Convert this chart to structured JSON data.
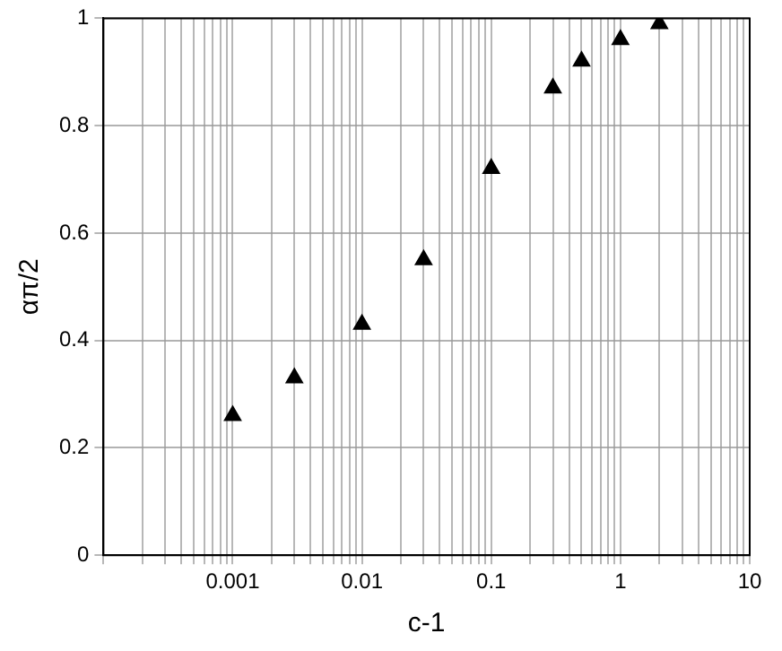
{
  "chart_data": {
    "type": "scatter",
    "xlabel": "c-1",
    "ylabel": "απ/2",
    "log": "x",
    "grid": true,
    "marker": "triangle",
    "legend": false,
    "x": [
      0.001,
      0.003,
      0.01,
      0.03,
      0.1,
      0.3,
      0.5,
      1,
      2
    ],
    "series": [
      {
        "color": "#000000",
        "values": [
          0.26,
          0.33,
          0.43,
          0.55,
          0.72,
          0.87,
          0.92,
          0.96,
          0.99
        ]
      }
    ],
    "xlim": [
      0.0001,
      10
    ],
    "xticks": [
      {
        "value": 0.0001,
        "label": null
      },
      {
        "value": 0.0002,
        "label": null
      },
      {
        "value": 0.0003,
        "label": null
      },
      {
        "value": 0.0004,
        "label": null
      },
      {
        "value": 0.0005,
        "label": null
      },
      {
        "value": 0.0006,
        "label": null
      },
      {
        "value": 0.0007,
        "label": null
      },
      {
        "value": 0.0008,
        "label": null
      },
      {
        "value": 0.0009,
        "label": null
      },
      0.001,
      {
        "value": 0.002,
        "label": null
      },
      {
        "value": 0.003,
        "label": null
      },
      {
        "value": 0.004,
        "label": null
      },
      {
        "value": 0.005,
        "label": null
      },
      {
        "value": 0.006,
        "label": null
      },
      {
        "value": 0.007,
        "label": null
      },
      {
        "value": 0.008,
        "label": null
      },
      {
        "value": 0.009,
        "label": null
      },
      0.01,
      {
        "value": 0.02,
        "label": null
      },
      {
        "value": 0.03,
        "label": null
      },
      {
        "value": 0.04,
        "label": null
      },
      {
        "value": 0.05,
        "label": null
      },
      {
        "value": 0.06,
        "label": null
      },
      {
        "value": 0.07,
        "label": null
      },
      {
        "value": 0.08,
        "label": null
      },
      {
        "value": 0.09,
        "label": null
      },
      0.1,
      {
        "value": 0.2,
        "label": null
      },
      {
        "value": 0.3,
        "label": null
      },
      {
        "value": 0.4,
        "label": null
      },
      {
        "value": 0.5,
        "label": null
      },
      {
        "value": 0.6,
        "label": null
      },
      {
        "value": 0.7,
        "label": null
      },
      {
        "value": 0.8,
        "label": null
      },
      {
        "value": 0.9,
        "label": null
      },
      1,
      {
        "value": 2,
        "label": null
      },
      {
        "value": 3,
        "label": null
      },
      {
        "value": 4,
        "label": null
      },
      {
        "value": 5,
        "label": null
      },
      {
        "value": 6,
        "label": null
      },
      {
        "value": 7,
        "label": null
      },
      {
        "value": 8,
        "label": null
      },
      {
        "value": 9,
        "label": null
      },
      10
    ],
    "ylim": [
      0,
      1
    ],
    "yticks": [
      0,
      0.2,
      0.4,
      0.6,
      0.8,
      1
    ]
  }
}
